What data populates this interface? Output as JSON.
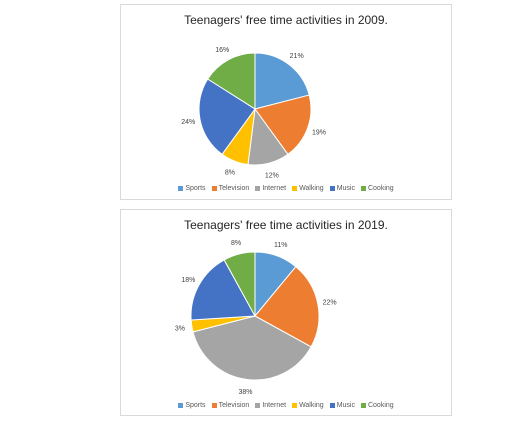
{
  "chart_data": [
    {
      "type": "pie",
      "title": "Teenagers' free time activities in 2009.",
      "categories": [
        "Sports",
        "Television",
        "Internet",
        "Walking",
        "Music",
        "Cooking"
      ],
      "values": [
        21,
        19,
        12,
        8,
        24,
        16
      ],
      "labels": [
        "21%",
        "19%",
        "12%",
        "8%",
        "24%",
        "16%"
      ],
      "legend_position": "bottom"
    },
    {
      "type": "pie",
      "title": "Teenagers' free time activities in 2019.",
      "categories": [
        "Sports",
        "Television",
        "Internet",
        "Walking",
        "Music",
        "Cooking"
      ],
      "values": [
        11,
        22,
        38,
        3,
        18,
        8
      ],
      "labels": [
        "11%",
        "22%",
        "38%",
        "3%",
        "18%",
        "8%"
      ],
      "legend_position": "bottom"
    }
  ],
  "colors": {
    "Sports": "#5B9BD5",
    "Television": "#ED7D31",
    "Internet": "#A5A5A5",
    "Walking": "#FFC000",
    "Music": "#4472C4",
    "Cooking": "#70AD47"
  }
}
